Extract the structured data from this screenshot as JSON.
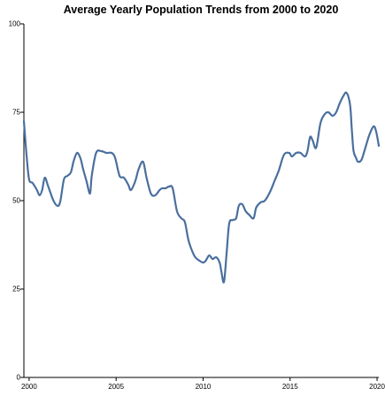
{
  "chart_data": {
    "type": "line",
    "title": "Average Yearly Population Trends from 2000 to 2020",
    "xlabel": "",
    "ylabel": "",
    "xlim": [
      1999.7,
      2020.1
    ],
    "ylim": [
      0,
      100
    ],
    "x_ticks": [
      2000,
      2005,
      2010,
      2015,
      2020
    ],
    "y_ticks": [
      0,
      25,
      50,
      75,
      100
    ],
    "grid": false,
    "line_color": "#4a6f9e",
    "series": [
      {
        "x": [
          1999.7,
          1999.85,
          2000.0,
          2000.2,
          2000.45,
          2000.6,
          2000.75,
          2000.9,
          2001.1,
          2001.4,
          2001.65,
          2001.8,
          2002.0,
          2002.2,
          2002.4,
          2002.55,
          2002.75,
          2002.95,
          2003.1,
          2003.3,
          2003.5,
          2003.6,
          2003.85,
          2004.15,
          2004.45,
          2004.75,
          2004.95,
          2005.2,
          2005.45,
          2005.7,
          2005.85,
          2006.1,
          2006.3,
          2006.55,
          2006.75,
          2007.0,
          2007.25,
          2007.5,
          2007.65,
          2007.85,
          2008.05,
          2008.25,
          2008.5,
          2008.75,
          2008.95,
          2009.15,
          2009.35,
          2009.55,
          2009.8,
          2010.0,
          2010.15,
          2010.35,
          2010.55,
          2010.75,
          2010.95,
          2011.05,
          2011.2,
          2011.35,
          2011.5,
          2011.7,
          2011.9,
          2012.05,
          2012.25,
          2012.45,
          2012.65,
          2012.9,
          2013.05,
          2013.3,
          2013.55,
          2013.85,
          2014.1,
          2014.35,
          2014.65,
          2014.95,
          2015.1,
          2015.35,
          2015.6,
          2015.85,
          2016.0,
          2016.15,
          2016.3,
          2016.5,
          2016.75,
          2017.0,
          2017.2,
          2017.45,
          2017.65,
          2017.85,
          2018.05,
          2018.25,
          2018.45,
          2018.55,
          2018.65,
          2018.8,
          2018.9,
          2019.1,
          2019.3,
          2019.55,
          2019.8,
          2019.95,
          2020.1
        ],
        "y": [
          72.5,
          63,
          56,
          55,
          53,
          51.5,
          53,
          56.5,
          54,
          50,
          48.5,
          50,
          56,
          57,
          58,
          61,
          63.5,
          62,
          59,
          55.5,
          52,
          57,
          63.5,
          64,
          63.5,
          63.5,
          62,
          57,
          56.5,
          54.5,
          53,
          55.5,
          59,
          61,
          56.5,
          52,
          51.5,
          53,
          53.5,
          53.5,
          54,
          53.5,
          47,
          45,
          44,
          39,
          36,
          34,
          33,
          32.5,
          33,
          34.5,
          33.5,
          34,
          32.5,
          30,
          27,
          35,
          43.5,
          44.5,
          45,
          48.5,
          49,
          47,
          46,
          45,
          48,
          49.5,
          50,
          52.5,
          55.5,
          58.5,
          63,
          63.5,
          62.5,
          63.5,
          63.5,
          62.5,
          64,
          68,
          67,
          65,
          72,
          74.5,
          75,
          74,
          75,
          77.5,
          79.5,
          80.5,
          77,
          70,
          64,
          62,
          61,
          61.5,
          64.5,
          68.5,
          71,
          69.5,
          65.5
        ]
      }
    ]
  }
}
